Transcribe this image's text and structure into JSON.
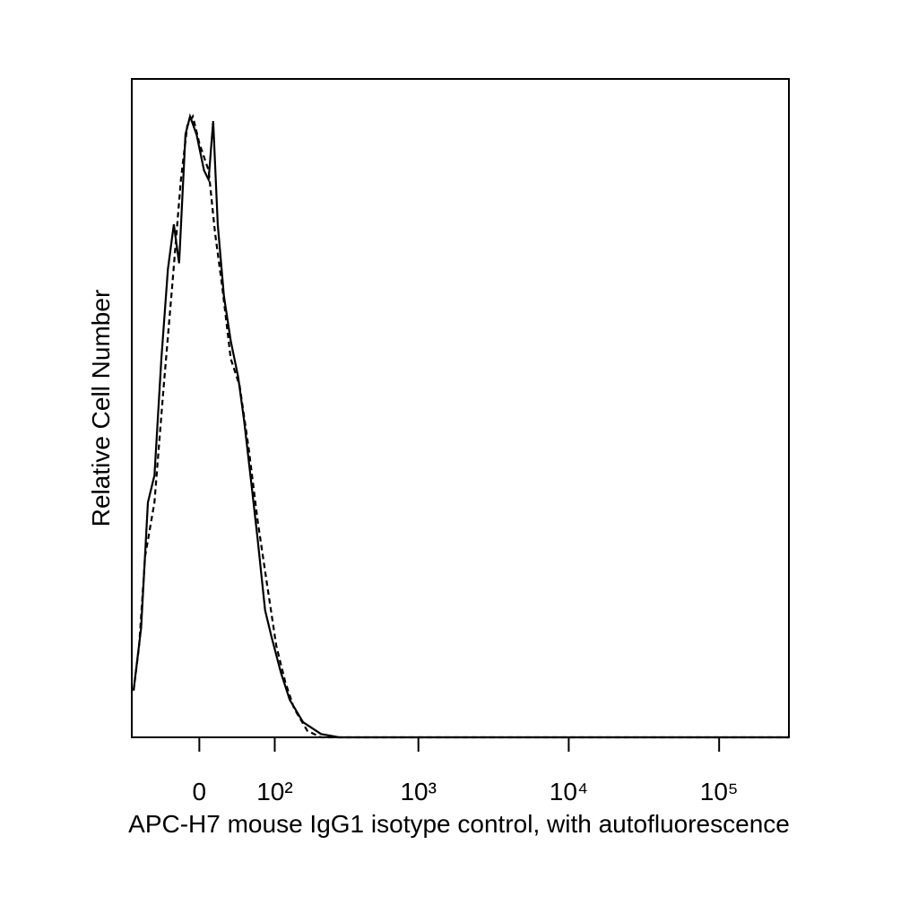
{
  "chart_data": {
    "type": "line",
    "xlabel": "APC-H7 mouse IgG1 isotype control, with autofluorescence",
    "ylabel": "Relative Cell Number",
    "xscale": "biexponential",
    "xlim": [
      -86,
      291000
    ],
    "ylim": [
      0,
      100
    ],
    "xticks": [
      0,
      {
        "value": 100,
        "label": "10²"
      },
      {
        "value": 1000,
        "label": "10³"
      },
      {
        "value": 10000,
        "label": "10⁴"
      },
      {
        "value": 100000,
        "label": "10⁵"
      }
    ],
    "series": [
      {
        "color": "#000000",
        "dash": "solid",
        "x": [
          -83,
          -71,
          -61,
          -52,
          -43,
          -35,
          -28,
          -22,
          -15,
          -10,
          -3,
          5,
          10,
          15,
          20,
          27,
          35,
          44,
          52,
          62,
          71,
          83,
          94,
          112,
          131,
          164,
          220,
          293,
          291000
        ],
        "values": [
          7.1,
          16.6,
          35.7,
          39.8,
          57.5,
          71.1,
          77.9,
          72.0,
          91.6,
          94.3,
          91.6,
          86.1,
          84.7,
          93.6,
          77.9,
          67.0,
          60.2,
          54.8,
          48.0,
          38.4,
          30.2,
          19.3,
          15.3,
          9.8,
          5.7,
          2.3,
          0.5,
          0,
          0
        ]
      },
      {
        "color": "#000000",
        "dash": "dashed",
        "x": [
          -83,
          -74,
          -65,
          -52,
          -41,
          -30,
          -20,
          -13,
          -7,
          0,
          10,
          17,
          25,
          35,
          46,
          58,
          71,
          86,
          103,
          121,
          141,
          176,
          220,
          291000
        ],
        "values": [
          7.1,
          13.9,
          27.5,
          35.7,
          52.0,
          68.4,
          84.7,
          92.9,
          94.3,
          90.2,
          86.1,
          76.6,
          68.4,
          57.5,
          53.4,
          43.9,
          33.0,
          23.4,
          13.9,
          8.4,
          4.4,
          1.0,
          0,
          0
        ]
      }
    ]
  }
}
